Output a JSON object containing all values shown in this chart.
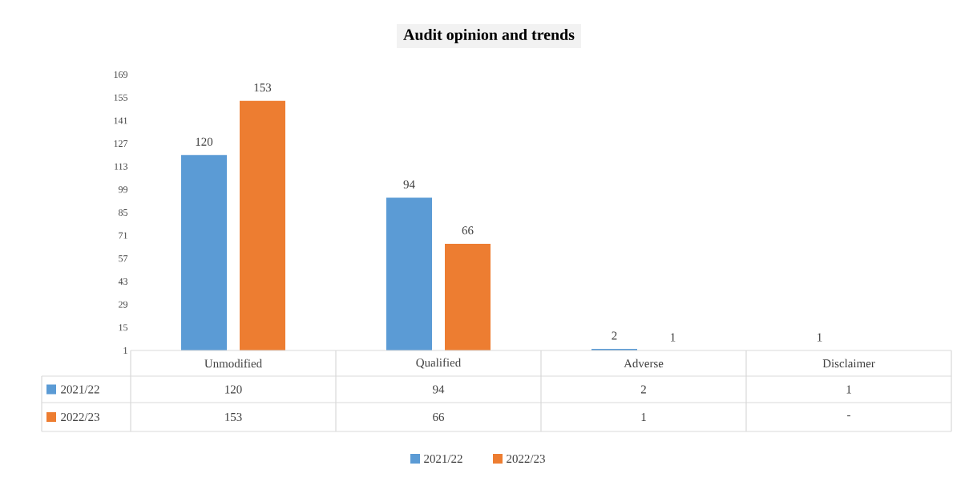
{
  "chart_data": {
    "type": "bar",
    "title": "Audit opinion and trends",
    "categories": [
      "Unmodified",
      "Qualified",
      "Adverse",
      "Disclaimer"
    ],
    "series": [
      {
        "name": "2021/22",
        "color": "#5b9bd5",
        "values": [
          120,
          94,
          2,
          1
        ],
        "value_labels": [
          "120",
          "94",
          "2",
          "1"
        ]
      },
      {
        "name": "2022/23",
        "color": "#ed7d31",
        "values": [
          153,
          66,
          1,
          null
        ],
        "value_labels": [
          "153",
          "66",
          "1",
          "-"
        ]
      }
    ],
    "ylim": [
      1,
      169
    ],
    "yticks": [
      1,
      15,
      29,
      43,
      57,
      71,
      85,
      99,
      113,
      127,
      141,
      155,
      169
    ],
    "legend": "bottom"
  }
}
